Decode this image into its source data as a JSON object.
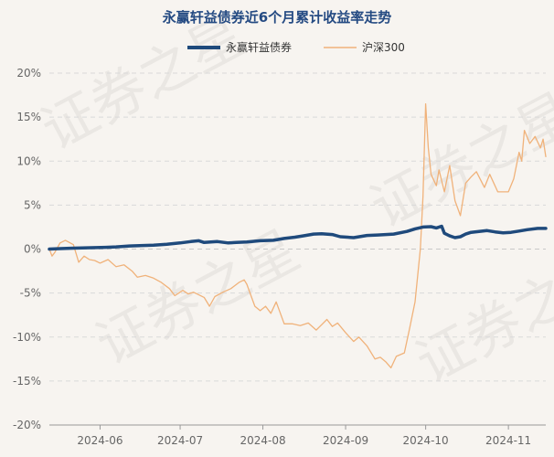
{
  "chart_data": {
    "type": "line",
    "title": "永赢轩益债券近6个月累计收益率走势",
    "xlabel": "",
    "ylabel": "",
    "ylim": [
      -20,
      20
    ],
    "ytick_values": [
      20,
      15,
      10,
      5,
      0,
      -5,
      -10,
      -15,
      -20
    ],
    "ytick_labels": [
      "20%",
      "15%",
      "10%",
      "5%",
      "0%",
      "-5%",
      "-10%",
      "-15%",
      "-20%"
    ],
    "xlim": [
      "2024-05-13",
      "2024-11-15"
    ],
    "xticks": [
      {
        "date": "2024-06-01",
        "label": "2024-06"
      },
      {
        "date": "2024-07-01",
        "label": "2024-07"
      },
      {
        "date": "2024-08-01",
        "label": "2024-08"
      },
      {
        "date": "2024-09-01",
        "label": "2024-09"
      },
      {
        "date": "2024-10-01",
        "label": "2024-10"
      },
      {
        "date": "2024-11-01",
        "label": "2024-11"
      }
    ],
    "grid": "horizontal-dashed",
    "legend_position": "top-center",
    "watermark": "证券之星",
    "series": [
      {
        "name": "永赢轩益债券",
        "color": "#1f4a7c",
        "points": [
          [
            "2024-05-13",
            0.0
          ],
          [
            "2024-05-17",
            0.05
          ],
          [
            "2024-05-22",
            0.1
          ],
          [
            "2024-05-27",
            0.15
          ],
          [
            "2024-06-03",
            0.2
          ],
          [
            "2024-06-07",
            0.25
          ],
          [
            "2024-06-12",
            0.35
          ],
          [
            "2024-06-17",
            0.4
          ],
          [
            "2024-06-21",
            0.45
          ],
          [
            "2024-06-26",
            0.55
          ],
          [
            "2024-07-01",
            0.7
          ],
          [
            "2024-07-05",
            0.85
          ],
          [
            "2024-07-08",
            0.95
          ],
          [
            "2024-07-10",
            0.75
          ],
          [
            "2024-07-15",
            0.85
          ],
          [
            "2024-07-19",
            0.7
          ],
          [
            "2024-07-22",
            0.75
          ],
          [
            "2024-07-26",
            0.8
          ],
          [
            "2024-07-31",
            0.95
          ],
          [
            "2024-08-05",
            1.0
          ],
          [
            "2024-08-09",
            1.2
          ],
          [
            "2024-08-13",
            1.35
          ],
          [
            "2024-08-16",
            1.5
          ],
          [
            "2024-08-20",
            1.7
          ],
          [
            "2024-08-23",
            1.75
          ],
          [
            "2024-08-27",
            1.65
          ],
          [
            "2024-08-30",
            1.4
          ],
          [
            "2024-09-04",
            1.3
          ],
          [
            "2024-09-09",
            1.55
          ],
          [
            "2024-09-13",
            1.6
          ],
          [
            "2024-09-19",
            1.7
          ],
          [
            "2024-09-24",
            2.0
          ],
          [
            "2024-09-27",
            2.3
          ],
          [
            "2024-09-30",
            2.5
          ],
          [
            "2024-10-03",
            2.55
          ],
          [
            "2024-10-05",
            2.4
          ],
          [
            "2024-10-07",
            2.6
          ],
          [
            "2024-10-08",
            1.8
          ],
          [
            "2024-10-10",
            1.5
          ],
          [
            "2024-10-12",
            1.3
          ],
          [
            "2024-10-14",
            1.4
          ],
          [
            "2024-10-16",
            1.7
          ],
          [
            "2024-10-18",
            1.9
          ],
          [
            "2024-10-21",
            2.0
          ],
          [
            "2024-10-24",
            2.1
          ],
          [
            "2024-10-27",
            1.95
          ],
          [
            "2024-10-30",
            1.85
          ],
          [
            "2024-11-02",
            1.9
          ],
          [
            "2024-11-05",
            2.05
          ],
          [
            "2024-11-08",
            2.2
          ],
          [
            "2024-11-12",
            2.35
          ],
          [
            "2024-11-15",
            2.35
          ]
        ]
      },
      {
        "name": "沪深300",
        "color": "#f0b27a",
        "points": [
          [
            "2024-05-13",
            0.0
          ],
          [
            "2024-05-14",
            -0.8
          ],
          [
            "2024-05-15",
            -0.4
          ],
          [
            "2024-05-17",
            0.7
          ],
          [
            "2024-05-19",
            1.0
          ],
          [
            "2024-05-22",
            0.5
          ],
          [
            "2024-05-24",
            -1.5
          ],
          [
            "2024-05-26",
            -0.8
          ],
          [
            "2024-05-28",
            -1.2
          ],
          [
            "2024-05-30",
            -1.3
          ],
          [
            "2024-06-01",
            -1.6
          ],
          [
            "2024-06-04",
            -1.2
          ],
          [
            "2024-06-07",
            -2.0
          ],
          [
            "2024-06-10",
            -1.8
          ],
          [
            "2024-06-13",
            -2.5
          ],
          [
            "2024-06-15",
            -3.2
          ],
          [
            "2024-06-18",
            -3.0
          ],
          [
            "2024-06-21",
            -3.3
          ],
          [
            "2024-06-24",
            -3.8
          ],
          [
            "2024-06-27",
            -4.5
          ],
          [
            "2024-06-29",
            -5.3
          ],
          [
            "2024-07-02",
            -4.7
          ],
          [
            "2024-07-04",
            -5.1
          ],
          [
            "2024-07-06",
            -4.9
          ],
          [
            "2024-07-08",
            -5.2
          ],
          [
            "2024-07-10",
            -5.5
          ],
          [
            "2024-07-12",
            -6.5
          ],
          [
            "2024-07-14",
            -5.4
          ],
          [
            "2024-07-17",
            -4.9
          ],
          [
            "2024-07-20",
            -4.5
          ],
          [
            "2024-07-23",
            -3.8
          ],
          [
            "2024-07-25",
            -3.5
          ],
          [
            "2024-07-26",
            -4.0
          ],
          [
            "2024-07-29",
            -6.5
          ],
          [
            "2024-07-31",
            -7.0
          ],
          [
            "2024-08-02",
            -6.5
          ],
          [
            "2024-08-04",
            -7.3
          ],
          [
            "2024-08-06",
            -6.0
          ],
          [
            "2024-08-09",
            -8.5
          ],
          [
            "2024-08-12",
            -8.5
          ],
          [
            "2024-08-15",
            -8.7
          ],
          [
            "2024-08-18",
            -8.4
          ],
          [
            "2024-08-21",
            -9.2
          ],
          [
            "2024-08-23",
            -8.6
          ],
          [
            "2024-08-25",
            -8.0
          ],
          [
            "2024-08-27",
            -8.8
          ],
          [
            "2024-08-29",
            -8.4
          ],
          [
            "2024-09-01",
            -9.5
          ],
          [
            "2024-09-04",
            -10.5
          ],
          [
            "2024-09-06",
            -10.0
          ],
          [
            "2024-09-09",
            -11.0
          ],
          [
            "2024-09-12",
            -12.5
          ],
          [
            "2024-09-14",
            -12.3
          ],
          [
            "2024-09-16",
            -12.8
          ],
          [
            "2024-09-18",
            -13.5
          ],
          [
            "2024-09-20",
            -12.2
          ],
          [
            "2024-09-23",
            -11.8
          ],
          [
            "2024-09-25",
            -9.0
          ],
          [
            "2024-09-27",
            -6.0
          ],
          [
            "2024-09-29",
            0.0
          ],
          [
            "2024-09-30",
            6.0
          ],
          [
            "2024-10-01",
            16.5
          ],
          [
            "2024-10-02",
            11.5
          ],
          [
            "2024-10-03",
            8.5
          ],
          [
            "2024-10-05",
            7.2
          ],
          [
            "2024-10-06",
            9.0
          ],
          [
            "2024-10-08",
            6.5
          ],
          [
            "2024-10-10",
            9.5
          ],
          [
            "2024-10-12",
            5.5
          ],
          [
            "2024-10-14",
            3.8
          ],
          [
            "2024-10-16",
            7.5
          ],
          [
            "2024-10-18",
            8.2
          ],
          [
            "2024-10-20",
            8.8
          ],
          [
            "2024-10-23",
            7.0
          ],
          [
            "2024-10-25",
            8.5
          ],
          [
            "2024-10-28",
            6.5
          ],
          [
            "2024-11-01",
            6.5
          ],
          [
            "2024-11-03",
            8.0
          ],
          [
            "2024-11-05",
            11.0
          ],
          [
            "2024-11-06",
            10.0
          ],
          [
            "2024-11-07",
            13.5
          ],
          [
            "2024-11-09",
            12.0
          ],
          [
            "2024-11-11",
            12.8
          ],
          [
            "2024-11-13",
            11.5
          ],
          [
            "2024-11-14",
            12.5
          ],
          [
            "2024-11-15",
            10.5
          ]
        ]
      }
    ]
  }
}
